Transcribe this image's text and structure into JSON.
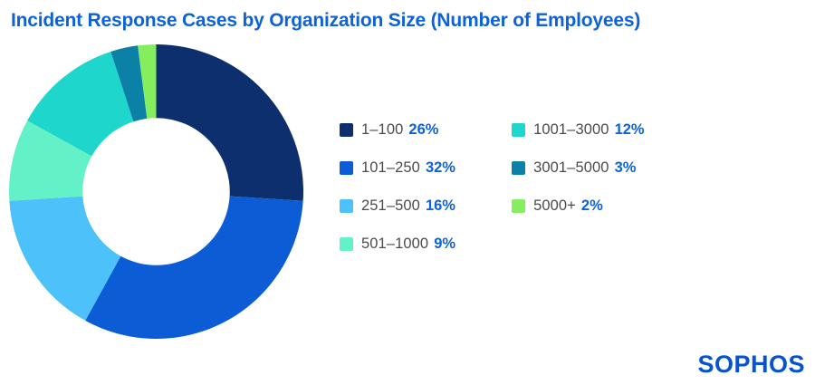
{
  "page": {
    "background": "#ffffff"
  },
  "header": {
    "title": "Incident Response Cases by Organization Size (Number of Employees)",
    "title_color": "#0C62D8"
  },
  "brand": {
    "logo_text": "SOPHOS",
    "logo_color": "#0553D3"
  },
  "chart_data": {
    "type": "pie",
    "subtype": "donut",
    "title": "Incident Response Cases by Organization Size (Number of Employees)",
    "unit": "%",
    "start_angle_deg": -90,
    "direction": "clockwise",
    "inner_radius_ratio": 0.5,
    "legend_position": "right",
    "segments": [
      {
        "label": "1–100",
        "value": 26,
        "pct": "26%",
        "color": "#0E2F6D"
      },
      {
        "label": "101–250",
        "value": 32,
        "pct": "32%",
        "color": "#0B5CD5"
      },
      {
        "label": "251–500",
        "value": 16,
        "pct": "16%",
        "color": "#4DC1F9"
      },
      {
        "label": "501–1000",
        "value": 9,
        "pct": "9%",
        "color": "#63F2C8"
      },
      {
        "label": "1001–3000",
        "value": 12,
        "pct": "12%",
        "color": "#1ED6CC"
      },
      {
        "label": "3001–5000",
        "value": 3,
        "pct": "3%",
        "color": "#0B81A8"
      },
      {
        "label": "5000+",
        "value": 2,
        "pct": "2%",
        "color": "#84EE5E"
      }
    ]
  }
}
